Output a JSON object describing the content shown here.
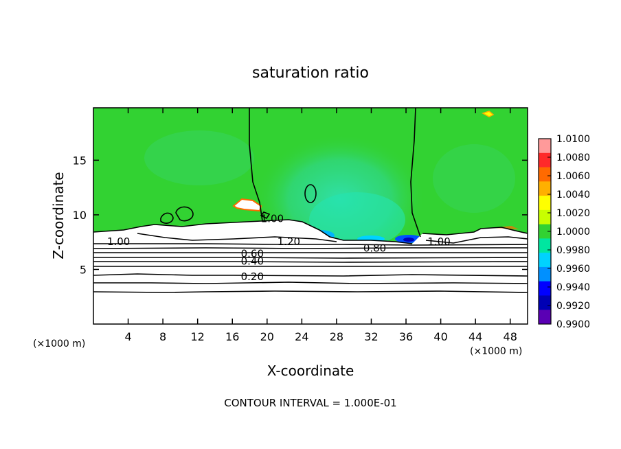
{
  "chart_data": {
    "type": "heatmap",
    "title": "saturation ratio",
    "xlabel": "X-coordinate",
    "ylabel": "Z-coordinate",
    "x_unit_label": "(×1000 m)",
    "x_unit_label_right": "(×1000 m)",
    "xlim": [
      0,
      50
    ],
    "ylim": [
      0,
      19.8
    ],
    "xticks": [
      4,
      8,
      12,
      16,
      20,
      24,
      28,
      32,
      36,
      40,
      44,
      48
    ],
    "yticks": [
      5,
      10,
      15
    ],
    "contour_interval_text": "CONTOUR INTERVAL = 1.000E-01",
    "colorbar": {
      "min": 0.99,
      "max": 1.01,
      "labels": [
        "1.0100",
        "1.0080",
        "1.0060",
        "1.0040",
        "1.0020",
        "1.0000",
        "0.9980",
        "0.9960",
        "0.9940",
        "0.9920",
        "0.9900"
      ],
      "colors": [
        "#ff9a9a",
        "#ff2a2a",
        "#ff6a00",
        "#ffb000",
        "#ffff00",
        "#c8ff00",
        "#32d232",
        "#00e6a0",
        "#00d2ff",
        "#0090ff",
        "#0000ff",
        "#0000b4",
        "#5a00b4"
      ]
    },
    "contour_labels": [
      {
        "text": "0.20",
        "x": 18.3,
        "z": 4.4
      },
      {
        "text": "0.40",
        "x": 18.3,
        "z": 5.8
      },
      {
        "text": "0.60",
        "x": 18.3,
        "z": 6.5
      },
      {
        "text": "0.80",
        "x": 32.4,
        "z": 7.0
      },
      {
        "text": "1.00",
        "x": 20.6,
        "z": 9.7
      },
      {
        "text": "1.20",
        "x": 22.5,
        "z": 7.6
      },
      {
        "text": "1.00",
        "x": 2.9,
        "z": 7.6
      },
      {
        "text": "1.00",
        "x": 39.8,
        "z": 7.6
      }
    ]
  }
}
